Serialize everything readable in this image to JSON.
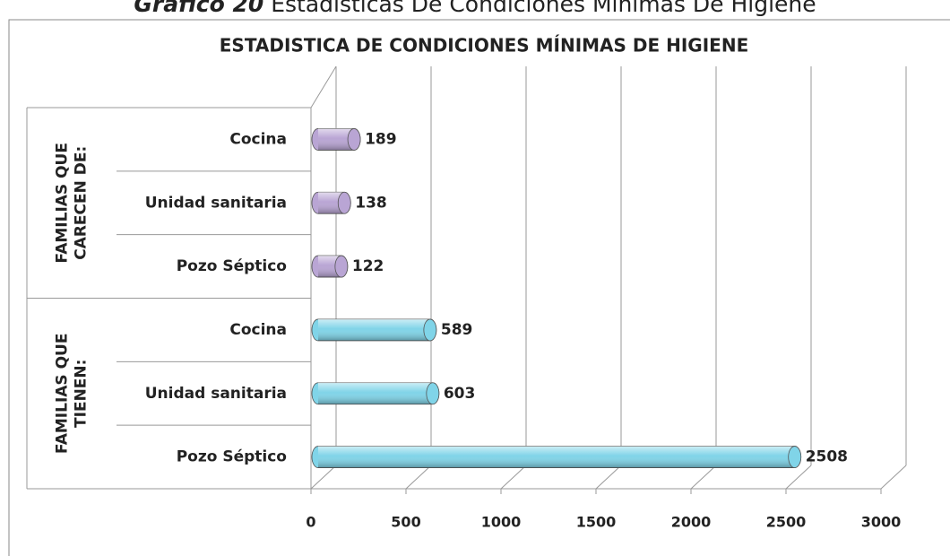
{
  "caption_label": "Gráfico 20",
  "caption": "Estadísticas De Condiciones Mínimas De Higiene",
  "chart_data": {
    "type": "bar",
    "orientation": "horizontal",
    "title": "ESTADISTICA DE CONDICIONES MÍNIMAS DE HIGIENE",
    "groups": [
      {
        "name": [
          "FAMILIAS QUE",
          "CARECEN DE:"
        ],
        "color": "#b9a5d4",
        "categories": [
          "Cocina",
          "Unidad sanitaria",
          "Pozo Séptico"
        ],
        "values": [
          189,
          138,
          122
        ]
      },
      {
        "name": [
          "FAMILIAS QUE",
          "TIENEN:"
        ],
        "color": "#80d4e8",
        "categories": [
          "Cocina",
          "Unidad sanitaria",
          "Pozo Séptico"
        ],
        "values": [
          589,
          603,
          2508
        ]
      }
    ],
    "xlim": [
      0,
      3000
    ],
    "xticks": [
      0,
      500,
      1000,
      1500,
      2000,
      2500,
      3000
    ],
    "grid": true
  }
}
